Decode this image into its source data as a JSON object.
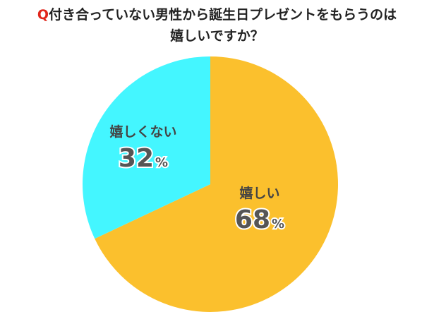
{
  "title": {
    "prefix": "Q",
    "line1": "付き合っていない男性から誕生日プレゼントをもらうのは",
    "line2": "嬉しいですか？"
  },
  "chart_data": {
    "type": "pie",
    "title": "Q付き合っていない男性から誕生日プレゼントをもらうのは嬉しいですか？",
    "start": "12 o'clock, clockwise",
    "slices": [
      {
        "label": "嬉しい",
        "value": 68,
        "value_text": "68",
        "unit": "%",
        "color": "#fbc02d"
      },
      {
        "label": "嬉しくない",
        "value": 32,
        "value_text": "32",
        "unit": "%",
        "color": "#44f6ff"
      }
    ]
  }
}
